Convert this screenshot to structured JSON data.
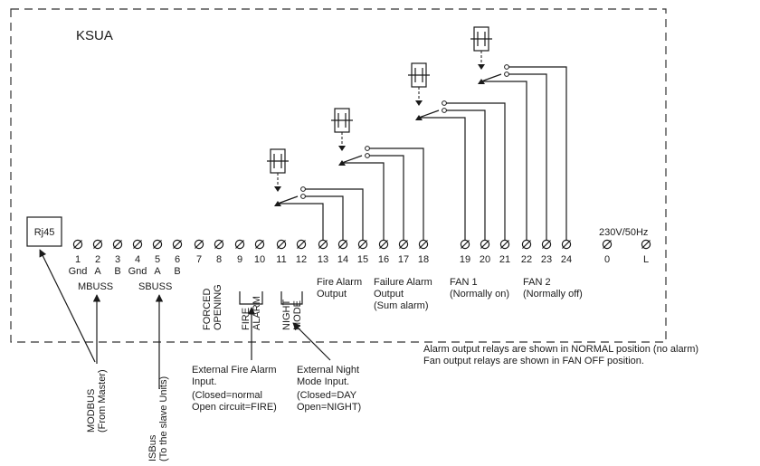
{
  "title": "KSUA",
  "rj45": "Rj45",
  "terminals": [
    "1",
    "2",
    "3",
    "4",
    "5",
    "6",
    "7",
    "8",
    "9",
    "10",
    "11",
    "12",
    "13",
    "14",
    "15",
    "16",
    "17",
    "18",
    "19",
    "20",
    "21",
    "22",
    "23",
    "24",
    "0",
    "L"
  ],
  "terminal_sublabels": [
    {
      "term": "1",
      "text": "Gnd"
    },
    {
      "term": "2",
      "text": "A"
    },
    {
      "term": "3",
      "text": "B"
    },
    {
      "term": "4",
      "text": "Gnd"
    },
    {
      "term": "5",
      "text": "A"
    },
    {
      "term": "6",
      "text": "B"
    }
  ],
  "power": "230V/50Hz",
  "groups": {
    "mbuss": "MBUSS",
    "sbuss": "SBUSS",
    "forced_1": "FORCED",
    "forced_2": "OPENING",
    "fire_1": "FIRE",
    "fire_2": "ALARM",
    "night_1": "NIGHT",
    "night_2": "MODE",
    "fire_out_1": "Fire Alarm",
    "fire_out_2": "Output",
    "fail_out_1": "Failure Alarm",
    "fail_out_2": "Output",
    "fail_out_3": "(Sum alarm)",
    "fan1_1": "FAN 1",
    "fan1_2": "(Normally on)",
    "fan2_1": "FAN 2",
    "fan2_2": "(Normally off)"
  },
  "notes": {
    "line1": "Alarm output relays are shown in NORMAL position (no alarm)",
    "line2": "Fan output relays are shown in FAN OFF position."
  },
  "external": {
    "modbus_1": "MODBUS",
    "modbus_2": "(From Master)",
    "isbus_1": "ISBus",
    "isbus_2": "(To the slave Units)",
    "fire_1": "External Fire Alarm",
    "fire_2": "Input.",
    "fire_3": "(Closed=normal",
    "fire_4": "Open circuit=FIRE)",
    "night_1": "External Night",
    "night_2": "Mode Input.",
    "night_3": "(Closed=DAY",
    "night_4": "Open=NIGHT)"
  }
}
